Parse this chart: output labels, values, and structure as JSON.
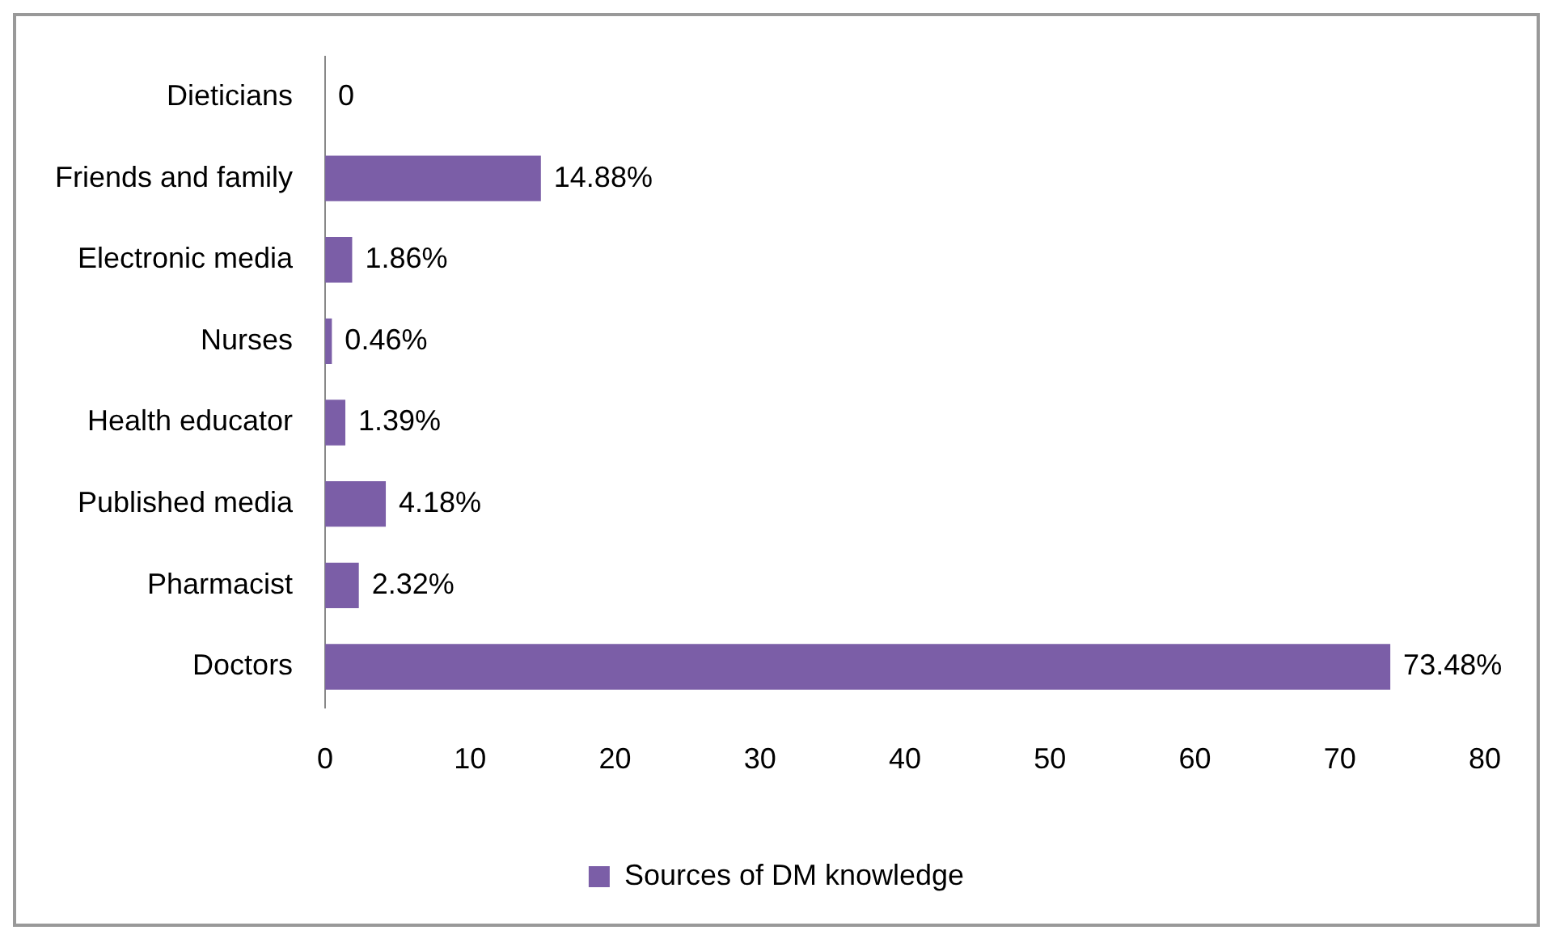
{
  "chart_data": {
    "type": "bar",
    "orientation": "horizontal",
    "categories": [
      "Dieticians",
      "Friends and family",
      "Electronic media",
      "Nurses",
      "Health educator",
      "Published media",
      "Pharmacist",
      "Doctors"
    ],
    "series": [
      {
        "name": "Sources of DM knowledge",
        "color": "#7b5ea7",
        "values": [
          0,
          14.88,
          1.86,
          0.46,
          1.39,
          4.18,
          2.32,
          73.48
        ],
        "value_labels": [
          "0",
          "14.88%",
          "1.86%",
          "0.46%",
          "1.39%",
          "4.18%",
          "2.32%",
          "73.48%"
        ]
      }
    ],
    "xlim": [
      0,
      80
    ],
    "xticks": [
      0,
      10,
      20,
      30,
      40,
      50,
      60,
      70,
      80
    ],
    "grid": false,
    "legend": "bottom"
  }
}
